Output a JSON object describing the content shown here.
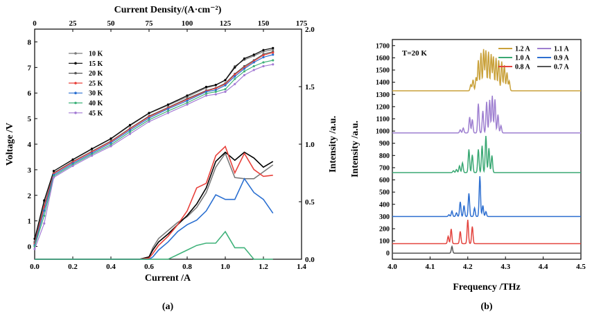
{
  "colors": {
    "10 K": "#7a7a7a",
    "15 K": "#000000",
    "20 K": "#555555",
    "25 K": "#e8403a",
    "30 K": "#2a6fd1",
    "40 K": "#3fb27a",
    "45 K": "#a37ad4",
    "1.2 A": "#c9a13a",
    "1.1 A": "#9e7fd0",
    "1.0 A": "#3aa873",
    "0.9 A": "#2e6fd0",
    "0.8 A": "#e3443e",
    "0.7 A": "#555555"
  },
  "panels": {
    "a": "(a)",
    "b": "(b)"
  },
  "chart_data": [
    {
      "type": "line",
      "panel": "(a)",
      "title": "",
      "xlabel": "Current /A",
      "ylabel": "Voltage /V",
      "ylabel_right": "Intensity /a.u.",
      "xlabel_top": "Current Density/(A·cm⁻²)",
      "xlim": [
        0,
        1.4
      ],
      "ylim": [
        -0.5,
        8.5
      ],
      "ylim_right": [
        0,
        2.0
      ],
      "xlim_top": [
        0,
        175
      ],
      "x_ticks": [
        "0.0",
        "0.2",
        "0.4",
        "0.6",
        "0.8",
        "1.0",
        "1.2",
        "1.4"
      ],
      "y_ticks": [
        "0",
        "1",
        "2",
        "3",
        "4",
        "5",
        "6",
        "7",
        "8"
      ],
      "y_right_ticks": [
        "0.0",
        "0.5",
        "1.0",
        "1.5",
        "2.0"
      ],
      "x_top_ticks": [
        "0",
        "25",
        "50",
        "75",
        "100",
        "125",
        "150",
        "175"
      ],
      "legend": {
        "position": "top-left",
        "entries": [
          "10 K",
          "15 K",
          "20 K",
          "25 K",
          "30 K",
          "40 K",
          "45 K"
        ]
      },
      "iv_series": [
        {
          "name": "10 K",
          "x": [
            0,
            0.05,
            0.1,
            0.2,
            0.3,
            0.4,
            0.5,
            0.6,
            0.7,
            0.8,
            0.9,
            0.95,
            1.0,
            1.05,
            1.1,
            1.15,
            1.2,
            1.25
          ],
          "values": [
            0.2,
            1.75,
            2.95,
            3.38,
            3.8,
            4.2,
            4.72,
            5.2,
            5.52,
            5.85,
            6.2,
            6.3,
            6.52,
            7.05,
            7.3,
            7.45,
            7.62,
            7.7
          ]
        },
        {
          "name": "15 K",
          "x": [
            0,
            0.05,
            0.1,
            0.2,
            0.3,
            0.4,
            0.5,
            0.6,
            0.7,
            0.8,
            0.9,
            0.95,
            1.0,
            1.05,
            1.1,
            1.15,
            1.2,
            1.25
          ],
          "values": [
            0.3,
            1.8,
            2.95,
            3.4,
            3.82,
            4.22,
            4.75,
            5.22,
            5.55,
            5.9,
            6.24,
            6.32,
            6.5,
            7.0,
            7.35,
            7.5,
            7.68,
            7.76
          ]
        },
        {
          "name": "20 K",
          "x": [
            0,
            0.05,
            0.1,
            0.2,
            0.3,
            0.4,
            0.5,
            0.6,
            0.7,
            0.8,
            0.9,
            0.95,
            1.0,
            1.05,
            1.1,
            1.15,
            1.2,
            1.25
          ],
          "values": [
            0.15,
            1.6,
            2.88,
            3.32,
            3.72,
            4.12,
            4.62,
            5.1,
            5.44,
            5.78,
            6.1,
            6.2,
            6.38,
            6.75,
            7.05,
            7.28,
            7.52,
            7.62
          ]
        },
        {
          "name": "25 K",
          "x": [
            0,
            0.05,
            0.1,
            0.2,
            0.3,
            0.4,
            0.5,
            0.6,
            0.7,
            0.8,
            0.9,
            0.95,
            1.0,
            1.05,
            1.1,
            1.15,
            1.2,
            1.25
          ],
          "values": [
            0.1,
            1.55,
            2.85,
            3.3,
            3.7,
            4.1,
            4.6,
            5.07,
            5.42,
            5.75,
            6.08,
            6.18,
            6.35,
            6.72,
            7.0,
            7.25,
            7.48,
            7.58
          ]
        },
        {
          "name": "30 K",
          "x": [
            0,
            0.05,
            0.1,
            0.2,
            0.3,
            0.4,
            0.5,
            0.6,
            0.7,
            0.8,
            0.9,
            0.95,
            1.0,
            1.05,
            1.1,
            1.15,
            1.2,
            1.25
          ],
          "values": [
            0.05,
            1.4,
            2.8,
            3.25,
            3.65,
            4.05,
            4.55,
            5.02,
            5.38,
            5.7,
            6.05,
            6.12,
            6.3,
            6.65,
            6.95,
            7.2,
            7.4,
            7.5
          ]
        },
        {
          "name": "40 K",
          "x": [
            0,
            0.05,
            0.1,
            0.2,
            0.3,
            0.4,
            0.5,
            0.6,
            0.7,
            0.8,
            0.9,
            0.95,
            1.0,
            1.05,
            1.1,
            1.15,
            1.2,
            1.25
          ],
          "values": [
            0.0,
            1.2,
            2.75,
            3.2,
            3.6,
            3.98,
            4.48,
            4.95,
            5.3,
            5.62,
            5.98,
            6.05,
            6.15,
            6.55,
            6.85,
            7.05,
            7.2,
            7.28
          ]
        },
        {
          "name": "45 K",
          "x": [
            0,
            0.05,
            0.1,
            0.2,
            0.3,
            0.4,
            0.5,
            0.6,
            0.7,
            0.8,
            0.9,
            0.95,
            1.0,
            1.05,
            1.1,
            1.15,
            1.2,
            1.25
          ],
          "values": [
            -0.1,
            0.9,
            2.7,
            3.15,
            3.55,
            3.92,
            4.4,
            4.88,
            5.22,
            5.55,
            5.9,
            5.95,
            6.05,
            6.35,
            6.7,
            6.9,
            7.05,
            7.12
          ]
        }
      ],
      "li_series": [
        {
          "name": "10 K",
          "x": [
            0,
            0.55,
            0.6,
            0.62,
            0.65,
            0.7,
            0.75,
            0.8,
            0.85,
            0.9,
            0.95,
            1.0,
            1.05,
            1.1,
            1.15,
            1.2,
            1.25
          ],
          "values": [
            0,
            0,
            0.02,
            0.1,
            0.18,
            0.25,
            0.32,
            0.37,
            0.45,
            0.58,
            0.8,
            0.92,
            0.71,
            0.7,
            0.7,
            0.76,
            0.82
          ]
        },
        {
          "name": "15 K",
          "x": [
            0,
            0.55,
            0.6,
            0.62,
            0.65,
            0.7,
            0.75,
            0.8,
            0.85,
            0.9,
            0.95,
            1.0,
            1.05,
            1.1,
            1.15,
            1.2,
            1.25
          ],
          "values": [
            0,
            0,
            0.02,
            0.08,
            0.15,
            0.22,
            0.3,
            0.38,
            0.48,
            0.62,
            0.85,
            0.93,
            0.86,
            0.93,
            0.88,
            0.8,
            0.85
          ]
        },
        {
          "name": "25 K",
          "x": [
            0,
            0.55,
            0.6,
            0.62,
            0.65,
            0.7,
            0.75,
            0.8,
            0.85,
            0.9,
            0.95,
            1.0,
            1.05,
            1.1,
            1.15,
            1.2,
            1.25
          ],
          "values": [
            0,
            0,
            0.01,
            0.05,
            0.12,
            0.2,
            0.3,
            0.42,
            0.62,
            0.66,
            0.9,
            0.98,
            0.75,
            0.92,
            0.78,
            0.72,
            0.73
          ]
        },
        {
          "name": "30 K",
          "x": [
            0,
            0.55,
            0.6,
            0.62,
            0.65,
            0.7,
            0.75,
            0.8,
            0.85,
            0.9,
            0.95,
            1.0,
            1.05,
            1.1,
            1.15,
            1.2,
            1.25
          ],
          "values": [
            0,
            0,
            0,
            0.02,
            0.08,
            0.15,
            0.24,
            0.3,
            0.34,
            0.42,
            0.56,
            0.52,
            0.52,
            0.7,
            0.58,
            0.52,
            0.4
          ]
        },
        {
          "name": "40 K",
          "x": [
            0,
            0.65,
            0.7,
            0.75,
            0.8,
            0.85,
            0.9,
            0.95,
            1.0,
            1.05,
            1.1,
            1.15,
            1.2,
            1.25
          ],
          "values": [
            0,
            0,
            0,
            0.04,
            0.08,
            0.12,
            0.14,
            0.14,
            0.24,
            0.1,
            0.1,
            0,
            0,
            0
          ]
        }
      ]
    },
    {
      "type": "line",
      "panel": "(b)",
      "title": "",
      "annotation": "T=20 K",
      "xlabel": "Frequency /THz",
      "ylabel": "Intensity /a.u.",
      "xlim": [
        4.0,
        4.5
      ],
      "ylim": [
        -50,
        1750
      ],
      "x_ticks": [
        "4.0",
        "4.1",
        "4.2",
        "4.3",
        "4.4",
        "4.5"
      ],
      "y_ticks": [
        "0",
        "100",
        "200",
        "300",
        "400",
        "500",
        "600",
        "700",
        "800",
        "900",
        "1000",
        "1100",
        "1200",
        "1300",
        "1400",
        "1500",
        "1600",
        "1700"
      ],
      "legend": {
        "position": "top-right",
        "entries": [
          "1.2 A",
          "1.1 A",
          "1.0 A",
          "0.9 A",
          "0.8 A",
          "0.7 A"
        ]
      },
      "spectra": [
        {
          "name": "1.2 A",
          "baseline": 1330,
          "peaks": [
            [
              4.208,
              50
            ],
            [
              4.214,
              90
            ],
            [
              4.222,
              110
            ],
            [
              4.228,
              250
            ],
            [
              4.235,
              310
            ],
            [
              4.242,
              340
            ],
            [
              4.248,
              330
            ],
            [
              4.255,
              320
            ],
            [
              4.262,
              300
            ],
            [
              4.268,
              280
            ],
            [
              4.275,
              270
            ],
            [
              4.282,
              250
            ],
            [
              4.29,
              240
            ],
            [
              4.297,
              210
            ],
            [
              4.304,
              150
            ],
            [
              4.31,
              80
            ]
          ]
        },
        {
          "name": "1.1 A",
          "baseline": 985,
          "peaks": [
            [
              4.18,
              25
            ],
            [
              4.188,
              40
            ],
            [
              4.205,
              130
            ],
            [
              4.212,
              110
            ],
            [
              4.228,
              240
            ],
            [
              4.24,
              180
            ],
            [
              4.25,
              255
            ],
            [
              4.258,
              270
            ],
            [
              4.265,
              305
            ],
            [
              4.272,
              275
            ],
            [
              4.28,
              150
            ],
            [
              4.288,
              60
            ]
          ]
        },
        {
          "name": "1.0 A",
          "baseline": 660,
          "peaks": [
            [
              4.162,
              15
            ],
            [
              4.17,
              25
            ],
            [
              4.178,
              55
            ],
            [
              4.186,
              80
            ],
            [
              4.203,
              190
            ],
            [
              4.212,
              145
            ],
            [
              4.228,
              190
            ],
            [
              4.238,
              220
            ],
            [
              4.248,
              300
            ],
            [
              4.256,
              200
            ],
            [
              4.264,
              140
            ]
          ]
        },
        {
          "name": "0.9 A",
          "baseline": 300,
          "peaks": [
            [
              4.15,
              15
            ],
            [
              4.158,
              45
            ],
            [
              4.17,
              30
            ],
            [
              4.18,
              120
            ],
            [
              4.19,
              90
            ],
            [
              4.203,
              190
            ],
            [
              4.218,
              70
            ],
            [
              4.232,
              330
            ],
            [
              4.24,
              90
            ],
            [
              4.248,
              40
            ]
          ]
        },
        {
          "name": "0.8 A",
          "baseline": 78,
          "peaks": [
            [
              4.148,
              60
            ],
            [
              4.156,
              120
            ],
            [
              4.18,
              100
            ],
            [
              4.2,
              195
            ],
            [
              4.212,
              140
            ]
          ]
        },
        {
          "name": "0.7 A",
          "baseline": 0,
          "peaks": [
            [
              4.158,
              55
            ]
          ]
        }
      ]
    }
  ]
}
